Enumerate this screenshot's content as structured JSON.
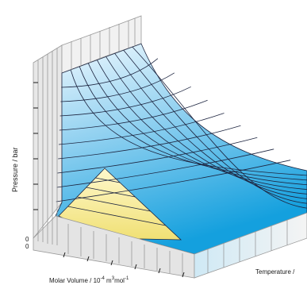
{
  "figure": {
    "y_axis_label": "Pressure / bar",
    "x_axis_label": "Molar Volume / 10",
    "x_axis_exponent": "-4",
    "x_axis_unit_a": " m",
    "x_axis_unit_exp": "3",
    "x_axis_unit_b": "mol",
    "x_axis_unit_exp2": "-1",
    "z_axis_label": "Temperature /",
    "origin_top": "0",
    "origin_bottom": "0"
  },
  "colors": {
    "surface_top": "#e9f6fd",
    "surface_bottom": "#16a2df",
    "coexistence_top": "#fff6c2",
    "coexistence_bottom": "#f2e37a",
    "wall": "#e6e6e6",
    "grid": "#1d2540"
  }
}
